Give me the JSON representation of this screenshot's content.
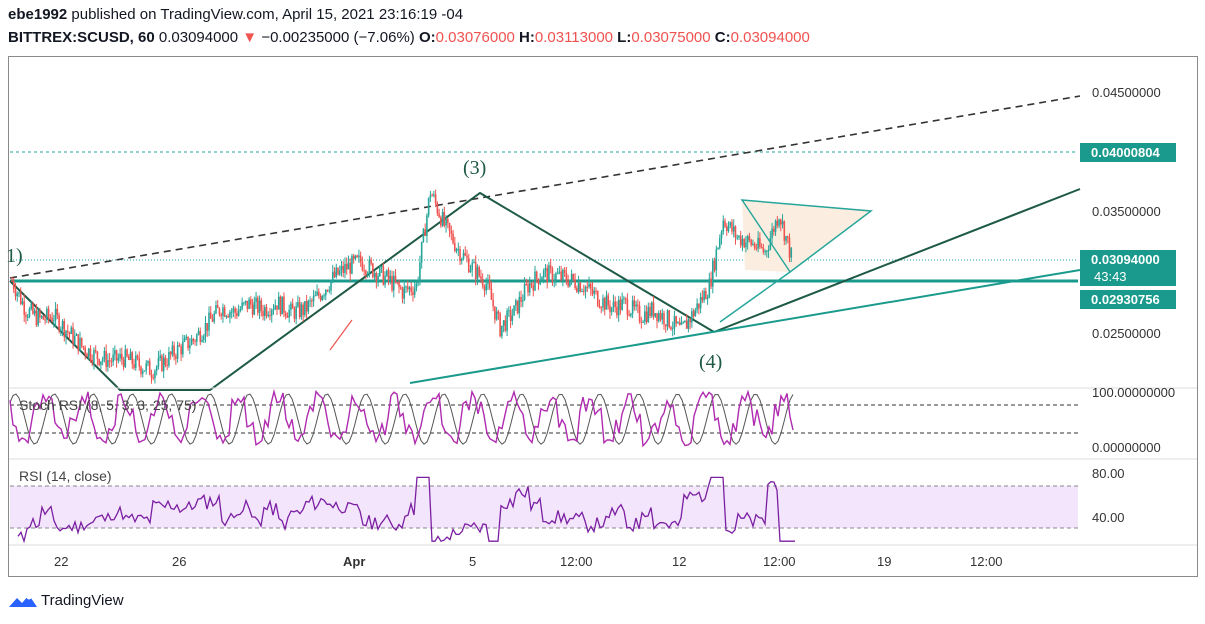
{
  "header": {
    "author": "ebe1992",
    "published": " published on TradingView.com, April 15, 2021 23:16:19 -04",
    "symbol": "BITTREX:SCUSD, 60",
    "last": " 0.03094000",
    "change_arrow": "▼",
    "change": " −0.00235000 (−7.06%)",
    "o_label": " O:",
    "o_val": "0.03076000",
    "h_label": " H:",
    "h_val": "0.03113000",
    "l_label": " L:",
    "l_val": "0.03075000",
    "c_label": " C:",
    "c_val": "0.03094000"
  },
  "colors": {
    "up": "#26a69a",
    "down": "#ef5350",
    "teal_line": "#1a9a8c",
    "dark_green": "#1e5a46",
    "stoch_k": "#b02bb0",
    "rsi": "#7b1fa2",
    "rsi_band": "#f3e5fb",
    "badge": "#1a9a8c"
  },
  "footer": {
    "brand": "TradingView",
    "logo_icon": "tradingview-logo-icon"
  },
  "chart_data": [
    {
      "type": "candlestick",
      "title": "BITTREX:SCUSD, 60",
      "y_ticks": [
        "0.04500000",
        "0.03500000",
        "0.02500000"
      ],
      "x_ticks": [
        "22",
        "26",
        "Apr",
        "5",
        "12:00",
        "12",
        "19",
        "12:00"
      ],
      "price_badges": [
        {
          "label": "0.04000804",
          "value": 0.04000804
        },
        {
          "label": "0.03094000",
          "value": 0.03094
        },
        {
          "label": "43:43",
          "value": null
        },
        {
          "label": "0.02930756",
          "value": 0.02930756
        }
      ],
      "horizontal_levels": [
        0.04000804,
        0.03094,
        0.02930756
      ],
      "wave_labels": [
        "1)",
        "(3)",
        "(4)"
      ],
      "approx_close_path": [
        0.0294,
        0.027,
        0.0262,
        0.0265,
        0.0252,
        0.024,
        0.0232,
        0.0228,
        0.023,
        0.0225,
        0.022,
        0.0228,
        0.0238,
        0.0245,
        0.0258,
        0.0272,
        0.0268,
        0.0275,
        0.027,
        0.0276,
        0.0268,
        0.027,
        0.0282,
        0.0296,
        0.0305,
        0.031,
        0.0302,
        0.0295,
        0.0285,
        0.029,
        0.0368,
        0.034,
        0.032,
        0.0305,
        0.0292,
        0.0255,
        0.0268,
        0.029,
        0.03,
        0.0298,
        0.0295,
        0.029,
        0.028,
        0.0272,
        0.0275,
        0.0265,
        0.027,
        0.0262,
        0.0252,
        0.027,
        0.029,
        0.0345,
        0.033,
        0.0325,
        0.0318,
        0.035,
        0.0309
      ]
    },
    {
      "type": "line",
      "title": "Stoch RSI (8, 5, 3, 3, 25, 75)",
      "y_ticks": [
        "100.00000000",
        "0.00000000"
      ],
      "levels": [
        75,
        25
      ],
      "ylim": [
        0,
        100
      ]
    },
    {
      "type": "line",
      "title": "RSI (14, close)",
      "y_ticks": [
        "80.00",
        "40.00"
      ],
      "band": [
        70,
        30
      ],
      "ylim": [
        20,
        90
      ]
    }
  ]
}
